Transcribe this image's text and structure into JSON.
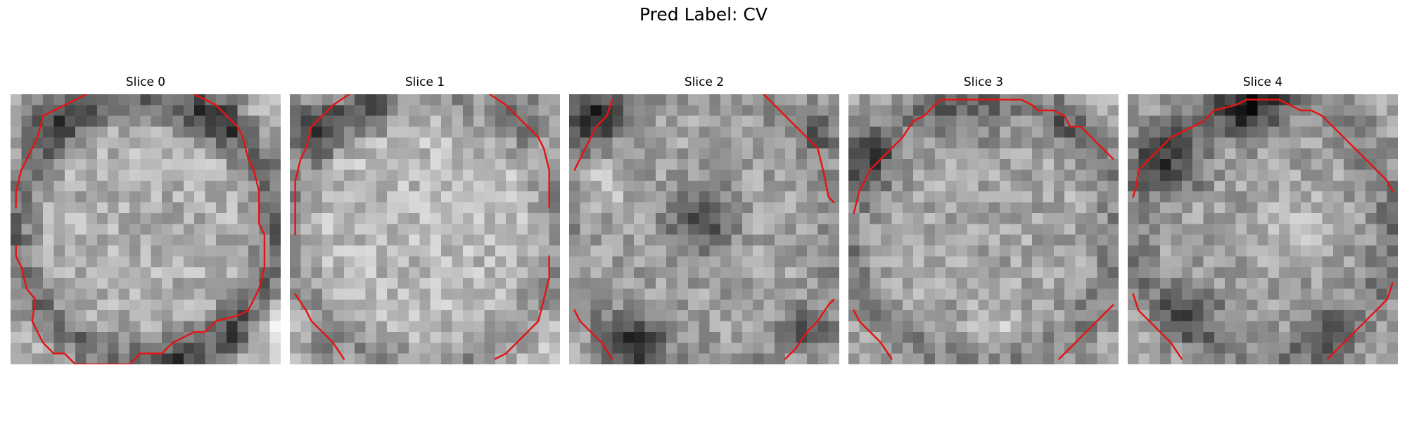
{
  "figure": {
    "title": "Pred Label: CV",
    "overlay_color": "#e31414",
    "colormap": "grayscale",
    "slices": [
      {
        "label": "Slice 0",
        "contour": [
          [
            [
              7,
              0
            ],
            [
              5,
              1
            ],
            [
              3,
              2
            ],
            [
              2.5,
              4
            ],
            [
              2,
              5
            ],
            [
              1,
              7
            ],
            [
              0.5,
              9
            ],
            [
              0.5,
              10.5
            ]
          ],
          [
            [
              17,
              0
            ],
            [
              19,
              1
            ],
            [
              20,
              2
            ],
            [
              21,
              3
            ],
            [
              21.5,
              4
            ],
            [
              22,
              6
            ],
            [
              22.5,
              7
            ],
            [
              23,
              9
            ],
            [
              23,
              12
            ],
            [
              23.5,
              13
            ],
            [
              23.5,
              16
            ],
            [
              23,
              18
            ],
            [
              22,
              20
            ],
            [
              21,
              20.5
            ],
            [
              19,
              21
            ],
            [
              18,
              22
            ],
            [
              17,
              22
            ],
            [
              15,
              23
            ],
            [
              14,
              24
            ],
            [
              12,
              24
            ],
            [
              11,
              25
            ],
            [
              6,
              25
            ],
            [
              5,
              24
            ],
            [
              4,
              24
            ],
            [
              3,
              23
            ],
            [
              2,
              21
            ],
            [
              2.3,
              19
            ],
            [
              1.5,
              18
            ],
            [
              1,
              16
            ],
            [
              0.5,
              15
            ],
            [
              0.5,
              14
            ]
          ]
        ]
      },
      {
        "label": "Slice 1",
        "contour": [
          [
            [
              5.5,
              0
            ],
            [
              4,
              1
            ],
            [
              3,
              2
            ],
            [
              2,
              3
            ],
            [
              1.5,
              5
            ],
            [
              1,
              6
            ],
            [
              0.5,
              8
            ],
            [
              0.5,
              13
            ]
          ],
          [
            [
              18.5,
              0
            ],
            [
              20,
              1
            ],
            [
              21,
              2
            ],
            [
              22,
              3
            ],
            [
              23,
              4
            ],
            [
              23.5,
              5
            ],
            [
              24,
              7
            ],
            [
              24,
              10.5
            ]
          ],
          [
            [
              0.5,
              18.5
            ],
            [
              1.5,
              20
            ],
            [
              2,
              21
            ],
            [
              3,
              22
            ],
            [
              4,
              23
            ],
            [
              5,
              24.5
            ]
          ],
          [
            [
              19,
              24.5
            ],
            [
              20,
              24
            ],
            [
              21,
              23
            ],
            [
              22,
              22
            ],
            [
              23,
              21
            ],
            [
              23.5,
              19
            ],
            [
              24,
              17
            ],
            [
              24,
              15
            ]
          ]
        ]
      },
      {
        "label": "Slice 2",
        "contour": [
          [
            [
              4,
              0.5
            ],
            [
              3.5,
              2
            ],
            [
              2.5,
              3
            ],
            [
              2,
              4
            ],
            [
              1.5,
              5
            ],
            [
              1,
              6
            ],
            [
              0.5,
              7
            ]
          ],
          [
            [
              18,
              0
            ],
            [
              19,
              1
            ],
            [
              20,
              2
            ],
            [
              21,
              3
            ],
            [
              22,
              4
            ],
            [
              23,
              5
            ],
            [
              23.5,
              7
            ],
            [
              24,
              9.5
            ],
            [
              24.5,
              10
            ]
          ],
          [
            [
              0.5,
              20
            ],
            [
              1,
              21
            ],
            [
              2,
              22
            ],
            [
              3,
              23
            ],
            [
              4,
              24.5
            ]
          ],
          [
            [
              20,
              24.5
            ],
            [
              21,
              23.5
            ],
            [
              22,
              22
            ],
            [
              23,
              21
            ],
            [
              24,
              19.5
            ],
            [
              24.5,
              19
            ]
          ]
        ]
      },
      {
        "label": "Slice 3",
        "contour": [
          [
            [
              0.5,
              11
            ],
            [
              1,
              9
            ],
            [
              1.5,
              8
            ],
            [
              2,
              7
            ],
            [
              3,
              6
            ],
            [
              4,
              5
            ],
            [
              5,
              4
            ],
            [
              6,
              2.5
            ],
            [
              7,
              2
            ],
            [
              7.5,
              1.5
            ],
            [
              8,
              1
            ],
            [
              8.5,
              0.5
            ],
            [
              16,
              0.5
            ],
            [
              17,
              1
            ],
            [
              17.5,
              1.5
            ],
            [
              19,
              1.5
            ],
            [
              20,
              2
            ],
            [
              20.5,
              3
            ],
            [
              21.5,
              3
            ],
            [
              22.5,
              4
            ],
            [
              23.5,
              5
            ],
            [
              24.5,
              6
            ]
          ],
          [
            [
              0.5,
              20
            ],
            [
              1,
              21
            ],
            [
              2,
              22
            ],
            [
              3,
              23
            ],
            [
              4,
              24.5
            ]
          ],
          [
            [
              19.5,
              24.5
            ],
            [
              20,
              24
            ],
            [
              21,
              23
            ],
            [
              22,
              22
            ],
            [
              23,
              21
            ],
            [
              24,
              20
            ],
            [
              24.5,
              19.5
            ]
          ]
        ]
      },
      {
        "label": "Slice 4",
        "contour": [
          [
            [
              0.5,
              9.5
            ],
            [
              0.8,
              8.5
            ],
            [
              1,
              7
            ],
            [
              2,
              6
            ],
            [
              3,
              5
            ],
            [
              4,
              4
            ],
            [
              5,
              3.5
            ],
            [
              6,
              3
            ],
            [
              7,
              2.5
            ],
            [
              8,
              1.5
            ],
            [
              10,
              1
            ],
            [
              11,
              0.5
            ],
            [
              14,
              0.5
            ],
            [
              15,
              1
            ],
            [
              16,
              1.5
            ],
            [
              17,
              1.5
            ],
            [
              18,
              2
            ],
            [
              19,
              3
            ],
            [
              20,
              4
            ],
            [
              21,
              5
            ],
            [
              22,
              6
            ],
            [
              23,
              7
            ],
            [
              24,
              8
            ],
            [
              24.5,
              9
            ]
          ],
          [
            [
              0.5,
              18.5
            ],
            [
              1,
              20
            ],
            [
              2,
              21
            ],
            [
              3,
              22
            ],
            [
              4,
              23
            ],
            [
              5,
              24.5
            ]
          ],
          [
            [
              18.5,
              24.5
            ],
            [
              19,
              24
            ],
            [
              20,
              23
            ],
            [
              21,
              22
            ],
            [
              22,
              21
            ],
            [
              23,
              20
            ],
            [
              24,
              19
            ],
            [
              24.5,
              17.5
            ]
          ]
        ]
      }
    ]
  }
}
